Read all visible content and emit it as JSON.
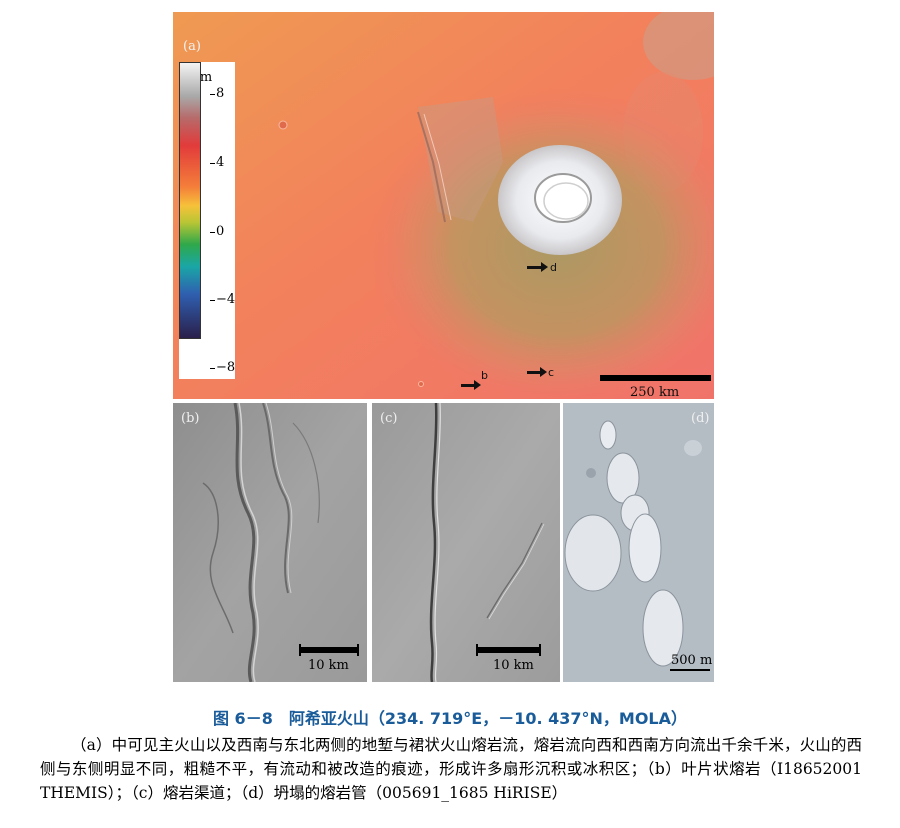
{
  "panel_a": {
    "tag": "(a)",
    "colorbar": {
      "unit": "km",
      "ticks": [
        "8",
        "4",
        "0",
        "−4",
        "−8"
      ]
    },
    "arrows": [
      {
        "label": "d"
      },
      {
        "label": "b"
      },
      {
        "label": "c"
      }
    ],
    "scale_label": "250 km"
  },
  "panel_b": {
    "tag": "(b)",
    "scale_label": "10 km"
  },
  "panel_c": {
    "tag": "(c)",
    "scale_label": "10 km"
  },
  "panel_d": {
    "tag": "(d)",
    "scale_label": "500 m"
  },
  "figure": {
    "title": "图 6－8　阿希亚火山（234. 719°E，－10. 437°N，MOLA）",
    "caption": "（a）中可见主火山以及西南与东北两侧的地堑与裙状火山熔岩流，熔岩流向西和西南方向流出千余千米，火山的西侧与东侧明显不同，粗糙不平，有流动和被改造的痕迹，形成许多扇形沉积或冰积区；（b）叶片状熔岩（I18652001 THEMIS）；（c）熔岩渠道；（d）坍塌的熔岩管（005691_1685 HiRISE）"
  }
}
